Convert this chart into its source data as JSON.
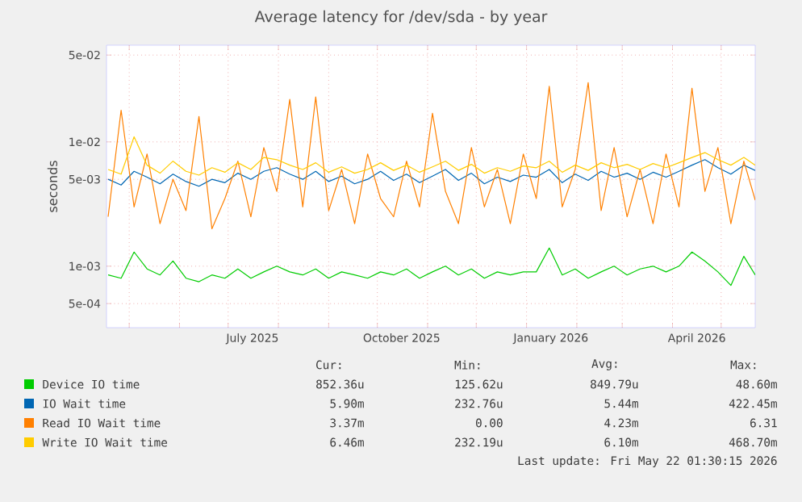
{
  "chart_data": {
    "type": "line",
    "title": "Average latency for /dev/sda - by year",
    "ylabel": "seconds",
    "log": "y",
    "grid": true,
    "legend": "bottom",
    "marker": "none",
    "line_style": "solid",
    "ylim": [
      0.00032,
      0.06
    ],
    "yticks": [
      {
        "value": 0.0005,
        "label": "5e-04"
      },
      {
        "value": 0.001,
        "label": "1e-03"
      },
      {
        "value": 0.005,
        "label": "5e-03"
      },
      {
        "value": 0.01,
        "label": "1e-02"
      },
      {
        "value": 0.05,
        "label": "5e-02"
      }
    ],
    "xlim": [
      "2025-04-17",
      "2026-05-22"
    ],
    "xticks": [
      {
        "value": "2025-05-01",
        "label": null
      },
      {
        "value": "2025-06-01",
        "label": null
      },
      {
        "value": "2025-07-01",
        "label": null
      },
      {
        "value": "2025-07-16",
        "label": "July 2025"
      },
      {
        "value": "2025-08-01",
        "label": null
      },
      {
        "value": "2025-09-01",
        "label": null
      },
      {
        "value": "2025-10-01",
        "label": null
      },
      {
        "value": "2025-10-16",
        "label": "October 2025"
      },
      {
        "value": "2025-11-01",
        "label": null
      },
      {
        "value": "2025-12-01",
        "label": null
      },
      {
        "value": "2026-01-01",
        "label": null
      },
      {
        "value": "2026-01-16",
        "label": "January 2026"
      },
      {
        "value": "2026-02-01",
        "label": null
      },
      {
        "value": "2026-03-01",
        "label": null
      },
      {
        "value": "2026-04-01",
        "label": null
      },
      {
        "value": "2026-04-16",
        "label": "April 2026"
      },
      {
        "value": "2026-05-01",
        "label": null
      }
    ],
    "x": [
      "2025-04-18",
      "2025-04-26",
      "2025-05-04",
      "2025-05-12",
      "2025-05-20",
      "2025-05-28",
      "2025-06-05",
      "2025-06-13",
      "2025-06-21",
      "2025-06-29",
      "2025-07-07",
      "2025-07-15",
      "2025-07-23",
      "2025-07-31",
      "2025-08-08",
      "2025-08-16",
      "2025-08-24",
      "2025-09-01",
      "2025-09-09",
      "2025-09-17",
      "2025-09-25",
      "2025-10-03",
      "2025-10-11",
      "2025-10-19",
      "2025-10-27",
      "2025-11-04",
      "2025-11-12",
      "2025-11-20",
      "2025-11-28",
      "2025-12-06",
      "2025-12-14",
      "2025-12-22",
      "2025-12-30",
      "2026-01-07",
      "2026-01-15",
      "2026-01-23",
      "2026-01-31",
      "2026-02-08",
      "2026-02-16",
      "2026-02-24",
      "2026-03-04",
      "2026-03-12",
      "2026-03-20",
      "2026-03-28",
      "2026-04-05",
      "2026-04-13",
      "2026-04-21",
      "2026-04-29",
      "2026-05-07",
      "2026-05-15",
      "2026-05-22"
    ],
    "series": [
      {
        "name": "Device IO time",
        "color": "#00cc00",
        "values": [
          0.00085,
          0.0008,
          0.0013,
          0.00095,
          0.00085,
          0.0011,
          0.0008,
          0.00075,
          0.00085,
          0.0008,
          0.00095,
          0.0008,
          0.0009,
          0.001,
          0.0009,
          0.00085,
          0.00095,
          0.0008,
          0.0009,
          0.00085,
          0.0008,
          0.0009,
          0.00085,
          0.00095,
          0.0008,
          0.0009,
          0.001,
          0.00085,
          0.00095,
          0.0008,
          0.0009,
          0.00085,
          0.0009,
          0.0009,
          0.0014,
          0.00085,
          0.00095,
          0.0008,
          0.0009,
          0.001,
          0.00085,
          0.00095,
          0.001,
          0.0009,
          0.001,
          0.0013,
          0.0011,
          0.0009,
          0.0007,
          0.0012,
          0.00085
        ]
      },
      {
        "name": "IO Wait time",
        "color": "#0066b3",
        "values": [
          0.005,
          0.0045,
          0.0058,
          0.0052,
          0.0046,
          0.0055,
          0.0048,
          0.0044,
          0.005,
          0.0047,
          0.0056,
          0.005,
          0.0058,
          0.0062,
          0.0055,
          0.005,
          0.0058,
          0.0048,
          0.0053,
          0.0046,
          0.005,
          0.0058,
          0.0049,
          0.0055,
          0.0047,
          0.0053,
          0.006,
          0.0049,
          0.0056,
          0.0046,
          0.0052,
          0.0048,
          0.0054,
          0.0052,
          0.006,
          0.0047,
          0.0055,
          0.0049,
          0.0058,
          0.0052,
          0.0056,
          0.005,
          0.0057,
          0.0052,
          0.0058,
          0.0065,
          0.0072,
          0.0062,
          0.0055,
          0.0065,
          0.0059
        ]
      },
      {
        "name": "Read IO Wait time",
        "color": "#ff8000",
        "values": [
          0.0025,
          0.018,
          0.003,
          0.008,
          0.0022,
          0.005,
          0.0028,
          0.016,
          0.002,
          0.0035,
          0.007,
          0.0025,
          0.009,
          0.004,
          0.022,
          0.003,
          0.023,
          0.0028,
          0.006,
          0.0022,
          0.008,
          0.0035,
          0.0025,
          0.007,
          0.003,
          0.017,
          0.004,
          0.0022,
          0.009,
          0.003,
          0.006,
          0.0022,
          0.008,
          0.0035,
          0.028,
          0.003,
          0.006,
          0.03,
          0.0028,
          0.009,
          0.0025,
          0.006,
          0.0022,
          0.008,
          0.003,
          0.027,
          0.004,
          0.009,
          0.0022,
          0.007,
          0.0034
        ]
      },
      {
        "name": "Write IO Wait time",
        "color": "#ffcc00",
        "values": [
          0.006,
          0.0055,
          0.011,
          0.0065,
          0.0056,
          0.007,
          0.0058,
          0.0054,
          0.0062,
          0.0057,
          0.0068,
          0.006,
          0.0075,
          0.0072,
          0.0065,
          0.006,
          0.0068,
          0.0057,
          0.0063,
          0.0056,
          0.006,
          0.0068,
          0.0059,
          0.0065,
          0.0057,
          0.0063,
          0.007,
          0.0059,
          0.0066,
          0.0056,
          0.0062,
          0.0058,
          0.0064,
          0.0062,
          0.007,
          0.0057,
          0.0065,
          0.0059,
          0.0068,
          0.0062,
          0.0066,
          0.006,
          0.0067,
          0.0062,
          0.0068,
          0.0075,
          0.0082,
          0.0072,
          0.0065,
          0.0075,
          0.0065
        ]
      }
    ],
    "annotations": [
      "Cur:",
      "Min:",
      "Avg:",
      "Max:",
      "852.36u",
      "125.62u",
      "849.79u",
      "48.60m",
      "5.90m",
      "232.76u",
      "5.44m",
      "422.45m",
      "3.37m",
      "0.00",
      "4.23m",
      "6.31",
      "6.46m",
      "232.19u",
      "6.10m",
      "468.70m",
      "Last update: Fri May 22 01:30:15 2026"
    ]
  }
}
